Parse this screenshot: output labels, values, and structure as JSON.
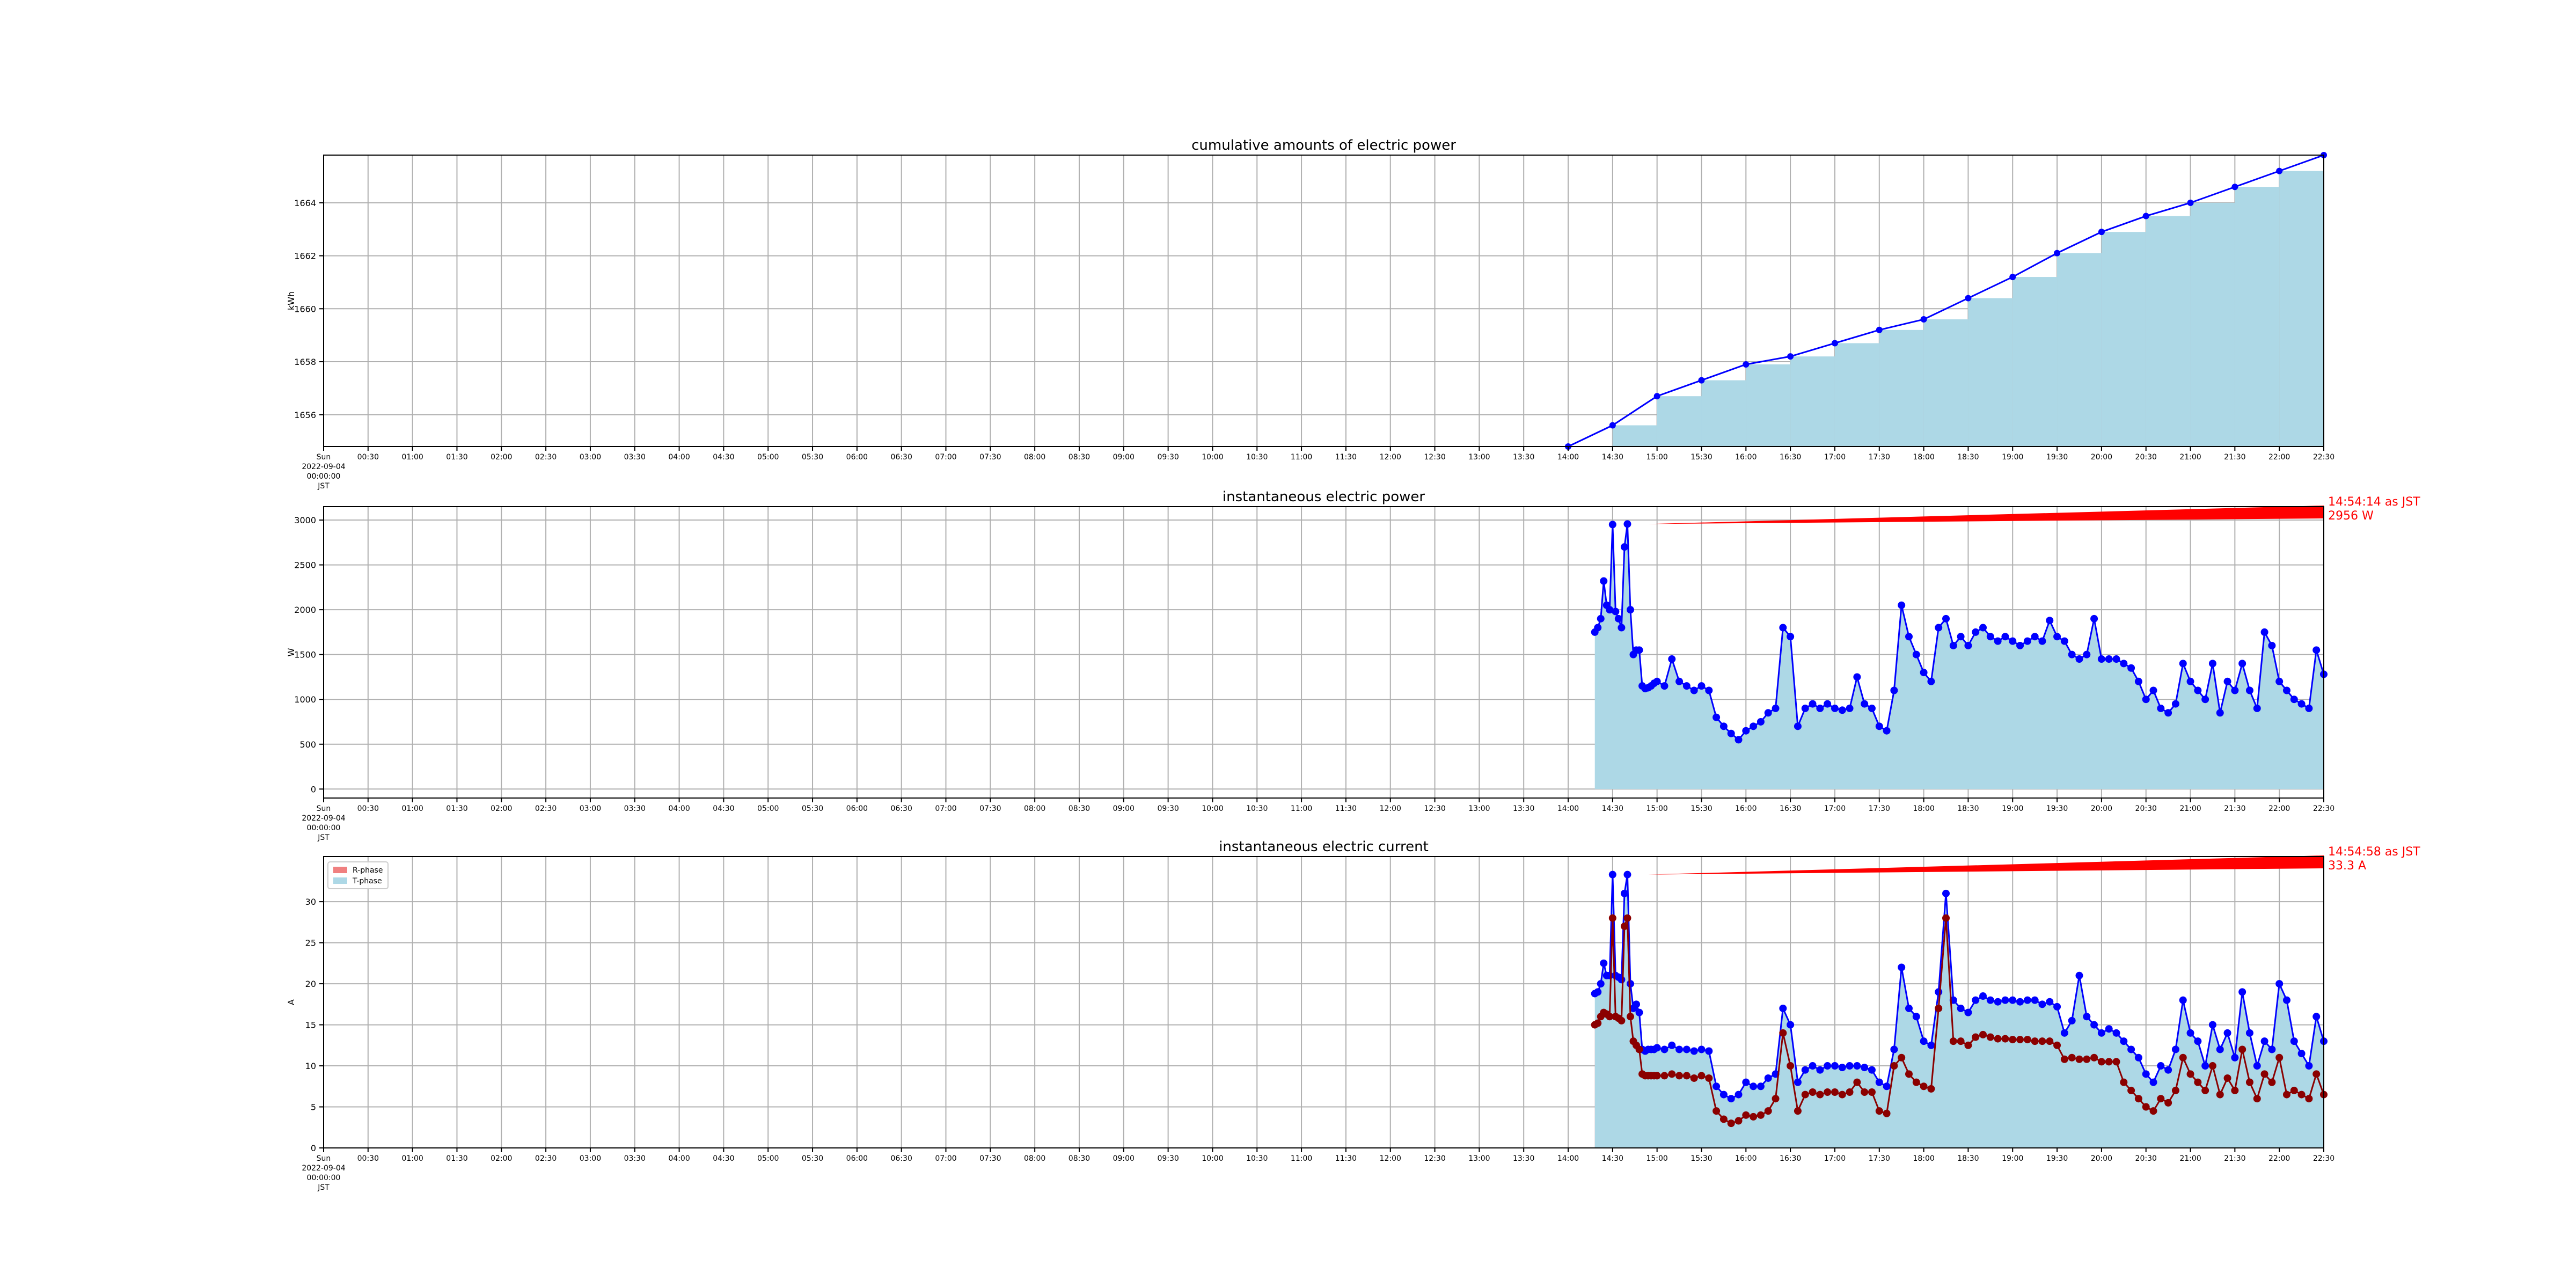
{
  "chart_data": [
    {
      "type": "area",
      "title": "cumulative amounts of electric power",
      "ylabel": "kWh",
      "xlabel": "",
      "grid": true,
      "ylim": [
        1654.8,
        1665.8
      ],
      "yticks": [
        1656,
        1658,
        1660,
        1662,
        1664
      ],
      "x": [
        "14:00",
        "14:30",
        "15:00",
        "15:30",
        "16:00",
        "16:30",
        "17:00",
        "17:30",
        "18:00",
        "18:30",
        "19:00",
        "19:30",
        "20:00",
        "20:30",
        "21:00",
        "21:30",
        "22:00",
        "22:30"
      ],
      "series": [
        {
          "values": [
            1654.8,
            1655.6,
            1656.7,
            1657.3,
            1657.9,
            1658.2,
            1658.7,
            1659.2,
            1659.6,
            1660.4,
            1661.2,
            1662.1,
            1662.9,
            1663.5,
            1664.0,
            1664.6,
            1665.2,
            1665.8
          ],
          "line_color": "#0000ff",
          "fill_color": "#add8e6"
        }
      ]
    },
    {
      "type": "area",
      "title": "instantaneous electric power",
      "ylabel": "W",
      "xlabel": "",
      "grid": true,
      "ylim": [
        -100,
        3150
      ],
      "yticks": [
        0,
        500,
        1000,
        1500,
        2000,
        2500,
        3000
      ],
      "x": [
        "14:18",
        "14:20",
        "14:22",
        "14:24",
        "14:26",
        "14:28",
        "14:30",
        "14:32",
        "14:34",
        "14:36",
        "14:38",
        "14:40",
        "14:42",
        "14:44",
        "14:46",
        "14:48",
        "14:50",
        "14:52",
        "14:54",
        "14:56",
        "14:58",
        "15:00",
        "15:05",
        "15:10",
        "15:15",
        "15:20",
        "15:25",
        "15:30",
        "15:35",
        "15:40",
        "15:45",
        "15:50",
        "15:55",
        "16:00",
        "16:05",
        "16:10",
        "16:15",
        "16:20",
        "16:25",
        "16:30",
        "16:35",
        "16:40",
        "16:45",
        "16:50",
        "16:55",
        "17:00",
        "17:05",
        "17:10",
        "17:15",
        "17:20",
        "17:25",
        "17:30",
        "17:35",
        "17:40",
        "17:45",
        "17:50",
        "17:55",
        "18:00",
        "18:05",
        "18:10",
        "18:15",
        "18:20",
        "18:25",
        "18:30",
        "18:35",
        "18:40",
        "18:45",
        "18:50",
        "18:55",
        "19:00",
        "19:05",
        "19:10",
        "19:15",
        "19:20",
        "19:25",
        "19:30",
        "19:35",
        "19:40",
        "19:45",
        "19:50",
        "19:55",
        "20:00",
        "20:05",
        "20:10",
        "20:15",
        "20:20",
        "20:25",
        "20:30",
        "20:35",
        "20:40",
        "20:45",
        "20:50",
        "20:55",
        "21:00",
        "21:05",
        "21:10",
        "21:15",
        "21:20",
        "21:25",
        "21:30",
        "21:35",
        "21:40",
        "21:45",
        "21:50",
        "21:55",
        "22:00",
        "22:05",
        "22:10",
        "22:15",
        "22:20",
        "22:25",
        "22:30"
      ],
      "series": [
        {
          "values": [
            1750,
            1800,
            1900,
            2320,
            2050,
            2000,
            2950,
            1980,
            1900,
            1800,
            2700,
            2956,
            2000,
            1500,
            1550,
            1550,
            1150,
            1120,
            1130,
            1150,
            1180,
            1200,
            1150,
            1450,
            1200,
            1150,
            1100,
            1150,
            1100,
            800,
            700,
            620,
            550,
            650,
            700,
            750,
            850,
            900,
            1800,
            1700,
            700,
            900,
            950,
            900,
            950,
            900,
            880,
            900,
            1250,
            950,
            900,
            700,
            650,
            1100,
            2050,
            1700,
            1500,
            1300,
            1200,
            1800,
            1900,
            1600,
            1700,
            1600,
            1750,
            1800,
            1700,
            1650,
            1700,
            1650,
            1600,
            1650,
            1700,
            1650,
            1880,
            1700,
            1650,
            1500,
            1450,
            1500,
            1900,
            1450,
            1450,
            1450,
            1400,
            1350,
            1200,
            1000,
            1100,
            900,
            850,
            950,
            1400,
            1200,
            1100,
            1000,
            1400,
            850,
            1200,
            1100,
            1400,
            1100,
            900,
            1750,
            1600,
            1200,
            1100,
            1000,
            950,
            900,
            1550,
            1280
          ],
          "line_color": "#0000ff",
          "fill_color": "#add8e6"
        }
      ],
      "annotation": {
        "text_line1": "14:54:14 as JST",
        "text_line2": "2956 W",
        "x": "14:54",
        "y": 2956,
        "color": "#ff0000"
      }
    },
    {
      "type": "area",
      "title": "instantaneous electric current",
      "ylabel": "A",
      "xlabel": "",
      "grid": true,
      "ylim": [
        0,
        35.5
      ],
      "yticks": [
        0,
        5,
        10,
        15,
        20,
        25,
        30
      ],
      "legend": {
        "position": "upper-left",
        "entries": [
          "R-phase",
          "T-phase"
        ]
      },
      "x": [
        "14:18",
        "14:20",
        "14:22",
        "14:24",
        "14:26",
        "14:28",
        "14:30",
        "14:32",
        "14:34",
        "14:36",
        "14:38",
        "14:40",
        "14:42",
        "14:44",
        "14:46",
        "14:48",
        "14:50",
        "14:52",
        "14:54",
        "14:56",
        "14:58",
        "15:00",
        "15:05",
        "15:10",
        "15:15",
        "15:20",
        "15:25",
        "15:30",
        "15:35",
        "15:40",
        "15:45",
        "15:50",
        "15:55",
        "16:00",
        "16:05",
        "16:10",
        "16:15",
        "16:20",
        "16:25",
        "16:30",
        "16:35",
        "16:40",
        "16:45",
        "16:50",
        "16:55",
        "17:00",
        "17:05",
        "17:10",
        "17:15",
        "17:20",
        "17:25",
        "17:30",
        "17:35",
        "17:40",
        "17:45",
        "17:50",
        "17:55",
        "18:00",
        "18:05",
        "18:10",
        "18:15",
        "18:20",
        "18:25",
        "18:30",
        "18:35",
        "18:40",
        "18:45",
        "18:50",
        "18:55",
        "19:00",
        "19:05",
        "19:10",
        "19:15",
        "19:20",
        "19:25",
        "19:30",
        "19:35",
        "19:40",
        "19:45",
        "19:50",
        "19:55",
        "20:00",
        "20:05",
        "20:10",
        "20:15",
        "20:20",
        "20:25",
        "20:30",
        "20:35",
        "20:40",
        "20:45",
        "20:50",
        "20:55",
        "21:00",
        "21:05",
        "21:10",
        "21:15",
        "21:20",
        "21:25",
        "21:30",
        "21:35",
        "21:40",
        "21:45",
        "21:50",
        "21:55",
        "22:00",
        "22:05",
        "22:10",
        "22:15",
        "22:20",
        "22:25",
        "22:30"
      ],
      "series": [
        {
          "name": "R-phase",
          "values": [
            15,
            15.2,
            16,
            16.5,
            16.3,
            16,
            28,
            16,
            15.8,
            15.5,
            27,
            28,
            16,
            13,
            12.5,
            12,
            9,
            8.8,
            8.8,
            8.8,
            8.8,
            8.8,
            8.8,
            9,
            8.8,
            8.8,
            8.5,
            8.8,
            8.5,
            4.5,
            3.5,
            3,
            3.3,
            4,
            3.8,
            4,
            4.5,
            6,
            14,
            10,
            4.5,
            6.5,
            6.8,
            6.5,
            6.8,
            6.8,
            6.5,
            6.8,
            8,
            6.8,
            6.8,
            4.5,
            4.2,
            10,
            11,
            9,
            8,
            7.5,
            7.2,
            17,
            28,
            13,
            13,
            12.5,
            13.5,
            13.8,
            13.5,
            13.3,
            13.3,
            13.2,
            13.2,
            13.2,
            13,
            13,
            13,
            12.5,
            10.8,
            11,
            10.8,
            10.8,
            11,
            10.5,
            10.5,
            10.5,
            8,
            7,
            6,
            5,
            4.5,
            6,
            5.5,
            7,
            11,
            9,
            8,
            7,
            10,
            6.5,
            8.5,
            7,
            12,
            8,
            6,
            9,
            8,
            11,
            6.5,
            7,
            6.5,
            6,
            9,
            6.5
          ],
          "line_color": "#8b0000",
          "fill_color": "#f08080"
        },
        {
          "name": "T-phase",
          "values": [
            18.8,
            19,
            20,
            22.5,
            21,
            21,
            33.3,
            21,
            20.8,
            20.5,
            31,
            33.3,
            20,
            17,
            17.5,
            16.5,
            12,
            11.8,
            12,
            12,
            12,
            12.2,
            12,
            12.5,
            12,
            12,
            11.8,
            12,
            11.8,
            7.5,
            6.5,
            6,
            6.5,
            8,
            7.5,
            7.5,
            8.5,
            9,
            17,
            15,
            8,
            9.5,
            10,
            9.5,
            10,
            10,
            9.8,
            10,
            10,
            9.8,
            9.5,
            8,
            7.5,
            12,
            22,
            17,
            16,
            13,
            12.5,
            19,
            31,
            18,
            17,
            16.5,
            18,
            18.5,
            18,
            17.8,
            18,
            18,
            17.8,
            18,
            18,
            17.5,
            17.8,
            17.2,
            14,
            15.5,
            21,
            16,
            15,
            14,
            14.5,
            14,
            13,
            12,
            11,
            9,
            8,
            10,
            9.5,
            12,
            18,
            14,
            13,
            10,
            15,
            12,
            14,
            11,
            19,
            14,
            10,
            13,
            12,
            20,
            18,
            13,
            11.5,
            10,
            16,
            13
          ],
          "line_color": "#0000ff",
          "fill_color": "#add8e6"
        }
      ],
      "annotation": {
        "text_line1": "14:54:58 as JST",
        "text_line2": "33.3 A",
        "x": "14:54",
        "y": 33.3,
        "color": "#ff0000"
      }
    }
  ],
  "x_axis": {
    "first_label": [
      "Sun",
      "2022-09-04",
      "00:00:00",
      "JST"
    ],
    "tick_labels": [
      "00:30",
      "01:00",
      "01:30",
      "02:00",
      "02:30",
      "03:00",
      "03:30",
      "04:00",
      "04:30",
      "05:00",
      "05:30",
      "06:00",
      "06:30",
      "07:00",
      "07:30",
      "08:00",
      "08:30",
      "09:00",
      "09:30",
      "10:00",
      "10:30",
      "11:00",
      "11:30",
      "12:00",
      "12:30",
      "13:00",
      "13:30",
      "14:00",
      "14:30",
      "15:00",
      "15:30",
      "16:00",
      "16:30",
      "17:00",
      "17:30",
      "18:00",
      "18:30",
      "19:00",
      "19:30",
      "20:00",
      "20:30",
      "21:00",
      "21:30",
      "22:00",
      "22:30"
    ],
    "range": [
      "00:00",
      "22:30"
    ]
  }
}
